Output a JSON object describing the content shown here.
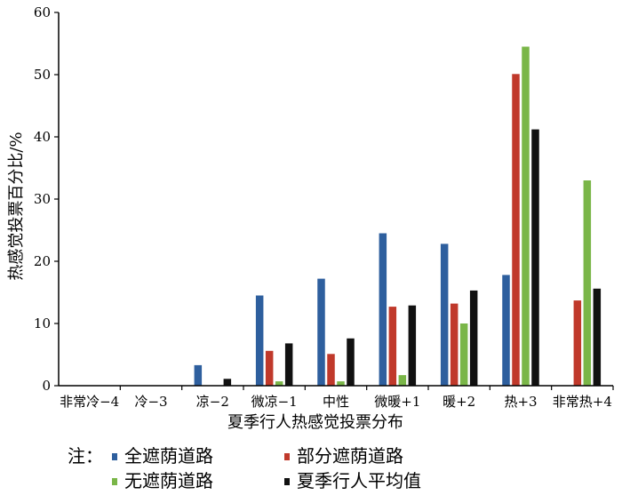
{
  "chart_data": {
    "type": "bar",
    "xlabel": "夏季行人热感觉投票分布",
    "ylabel": "热感觉投票百分比/%",
    "ylim": [
      0,
      60
    ],
    "yticks": [
      0,
      10,
      20,
      30,
      40,
      50,
      60
    ],
    "categories": [
      "非常冷−4",
      "冷−3",
      "凉−2",
      "微凉−1",
      "中性",
      "微暖+1",
      "暖+2",
      "热+3",
      "非常热+4"
    ],
    "legend_prefix": "注：",
    "legend_position": "bottom",
    "series": [
      {
        "name": "全遮荫道路",
        "color": "#2e5f9e",
        "values": [
          0,
          0,
          3.3,
          14.5,
          17.2,
          24.5,
          22.8,
          17.8,
          0
        ]
      },
      {
        "name": "部分遮荫道路",
        "color": "#c0392b",
        "values": [
          0,
          0,
          0,
          5.6,
          5.1,
          12.7,
          13.2,
          50.1,
          13.7
        ]
      },
      {
        "name": "无遮荫道路",
        "color": "#7ab648",
        "values": [
          0,
          0,
          0,
          0.7,
          0.7,
          1.7,
          10.0,
          54.5,
          33.0
        ]
      },
      {
        "name": "夏季行人平均值",
        "color": "#111111",
        "values": [
          0,
          0,
          1.1,
          6.8,
          7.6,
          12.9,
          15.3,
          41.2,
          15.6
        ]
      }
    ]
  }
}
